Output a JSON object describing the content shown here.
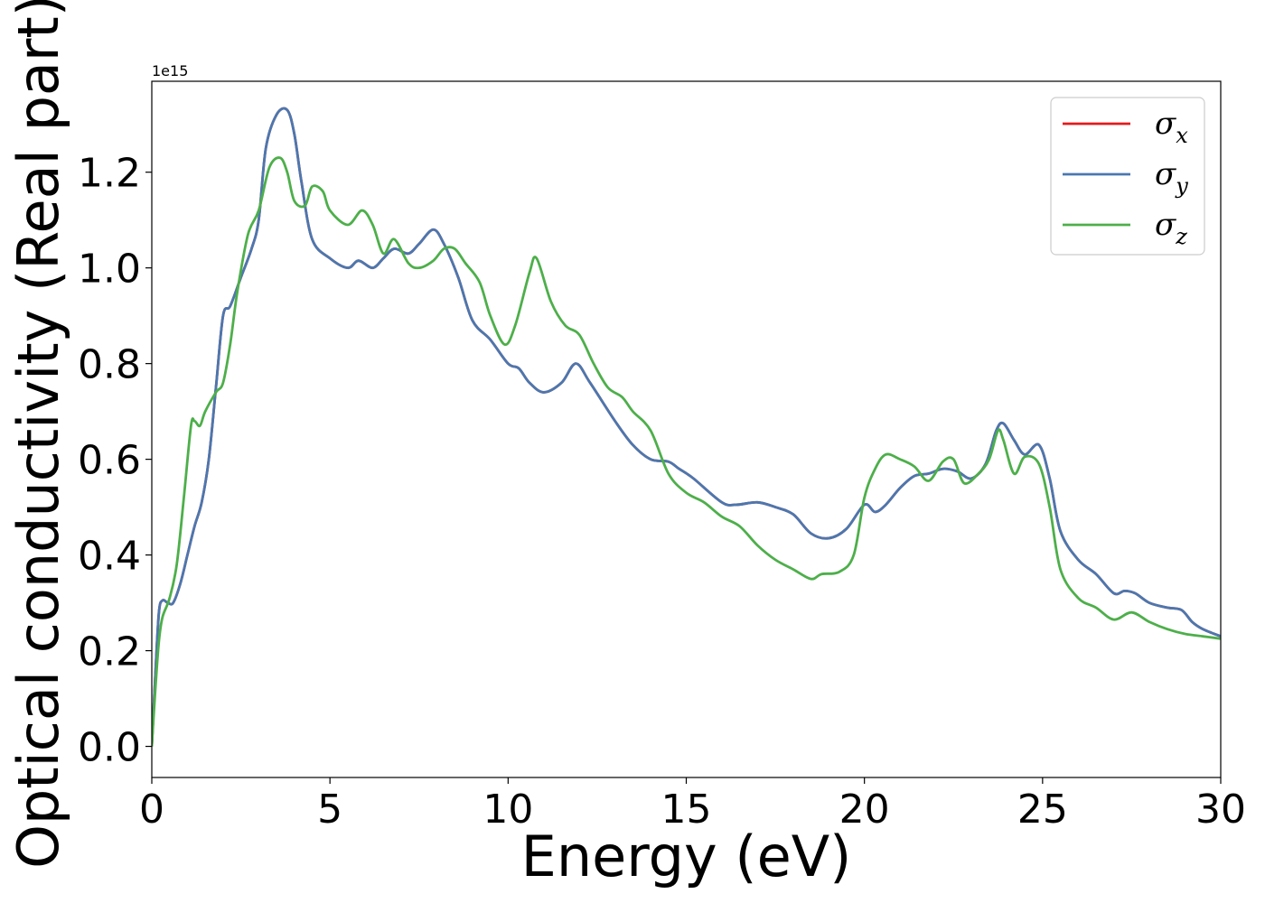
{
  "chart_data": {
    "type": "line",
    "xlabel": "Energy (eV)",
    "ylabel": "Optical conductivity (Real part)",
    "y_offset_label": "1e15",
    "xlim": [
      0,
      30
    ],
    "ylim": [
      -0.065,
      1.39
    ],
    "xticks": [
      0,
      5,
      10,
      15,
      20,
      25,
      30
    ],
    "xtick_labels": [
      "0",
      "5",
      "10",
      "15",
      "20",
      "25",
      "30"
    ],
    "yticks": [
      0.0,
      0.2,
      0.4,
      0.6,
      0.8,
      1.0,
      1.2
    ],
    "ytick_labels": [
      "0.0",
      "0.2",
      "0.4",
      "0.6",
      "0.8",
      "1.0",
      "1.2"
    ],
    "grid": false,
    "legend_position": "top-right",
    "legend": [
      {
        "symbol": "σ",
        "subscript": "x",
        "color": "#e41a1c"
      },
      {
        "symbol": "σ",
        "subscript": "y",
        "color": "#4a78b0"
      },
      {
        "symbol": "σ",
        "subscript": "z",
        "color": "#4daf4a"
      }
    ],
    "series": [
      {
        "color": "#e41a1c",
        "x": [
          0,
          0.1,
          0.2,
          0.3,
          0.45,
          0.6,
          0.8,
          1.0,
          1.2,
          1.4,
          1.6,
          1.8,
          2.0,
          2.2,
          2.5,
          2.8,
          3.0,
          3.2,
          3.5,
          3.8,
          4.0,
          4.2,
          4.5,
          5.0,
          5.5,
          5.8,
          6.2,
          6.5,
          6.8,
          7.2,
          7.5,
          7.9,
          8.2,
          8.6,
          9.0,
          9.5,
          10.0,
          10.3,
          10.6,
          11.0,
          11.5,
          11.9,
          12.3,
          13.0,
          13.5,
          14.0,
          14.5,
          14.8,
          15.2,
          16.0,
          16.4,
          17.0,
          17.5,
          18.0,
          18.5,
          19.0,
          19.5,
          20.0,
          20.3,
          20.6,
          21.0,
          21.4,
          21.8,
          22.2,
          22.6,
          23.0,
          23.4,
          23.7,
          23.9,
          24.2,
          24.5,
          24.9,
          25.2,
          25.5,
          26.0,
          26.5,
          27.0,
          27.3,
          27.6,
          28.0,
          28.5,
          28.9,
          29.2,
          29.5,
          30.0
        ],
        "values": [
          0.0,
          0.15,
          0.28,
          0.305,
          0.3,
          0.3,
          0.34,
          0.4,
          0.46,
          0.51,
          0.6,
          0.75,
          0.9,
          0.92,
          0.98,
          1.04,
          1.1,
          1.25,
          1.32,
          1.33,
          1.28,
          1.18,
          1.06,
          1.02,
          1.0,
          1.015,
          1.0,
          1.02,
          1.04,
          1.03,
          1.05,
          1.08,
          1.05,
          0.98,
          0.89,
          0.85,
          0.8,
          0.79,
          0.76,
          0.74,
          0.76,
          0.8,
          0.76,
          0.68,
          0.63,
          0.6,
          0.595,
          0.58,
          0.56,
          0.51,
          0.505,
          0.51,
          0.5,
          0.485,
          0.445,
          0.435,
          0.455,
          0.505,
          0.49,
          0.505,
          0.54,
          0.565,
          0.57,
          0.58,
          0.575,
          0.56,
          0.59,
          0.66,
          0.675,
          0.64,
          0.61,
          0.63,
          0.56,
          0.45,
          0.39,
          0.36,
          0.32,
          0.325,
          0.32,
          0.3,
          0.29,
          0.285,
          0.26,
          0.245,
          0.23
        ]
      },
      {
        "color": "#4a78b0",
        "x": [
          0,
          0.1,
          0.2,
          0.3,
          0.45,
          0.6,
          0.8,
          1.0,
          1.2,
          1.4,
          1.6,
          1.8,
          2.0,
          2.2,
          2.5,
          2.8,
          3.0,
          3.2,
          3.5,
          3.8,
          4.0,
          4.2,
          4.5,
          5.0,
          5.5,
          5.8,
          6.2,
          6.5,
          6.8,
          7.2,
          7.5,
          7.9,
          8.2,
          8.6,
          9.0,
          9.5,
          10.0,
          10.3,
          10.6,
          11.0,
          11.5,
          11.9,
          12.3,
          13.0,
          13.5,
          14.0,
          14.5,
          14.8,
          15.2,
          16.0,
          16.4,
          17.0,
          17.5,
          18.0,
          18.5,
          19.0,
          19.5,
          20.0,
          20.3,
          20.6,
          21.0,
          21.4,
          21.8,
          22.2,
          22.6,
          23.0,
          23.4,
          23.7,
          23.9,
          24.2,
          24.5,
          24.9,
          25.2,
          25.5,
          26.0,
          26.5,
          27.0,
          27.3,
          27.6,
          28.0,
          28.5,
          28.9,
          29.2,
          29.5,
          30.0
        ],
        "values": [
          0.0,
          0.15,
          0.28,
          0.305,
          0.3,
          0.3,
          0.34,
          0.4,
          0.46,
          0.51,
          0.6,
          0.75,
          0.9,
          0.92,
          0.98,
          1.04,
          1.1,
          1.25,
          1.32,
          1.33,
          1.28,
          1.18,
          1.06,
          1.02,
          1.0,
          1.015,
          1.0,
          1.02,
          1.04,
          1.03,
          1.05,
          1.08,
          1.05,
          0.98,
          0.89,
          0.85,
          0.8,
          0.79,
          0.76,
          0.74,
          0.76,
          0.8,
          0.76,
          0.68,
          0.63,
          0.6,
          0.595,
          0.58,
          0.56,
          0.51,
          0.505,
          0.51,
          0.5,
          0.485,
          0.445,
          0.435,
          0.455,
          0.505,
          0.49,
          0.505,
          0.54,
          0.565,
          0.57,
          0.58,
          0.575,
          0.56,
          0.59,
          0.66,
          0.675,
          0.64,
          0.61,
          0.63,
          0.56,
          0.45,
          0.39,
          0.36,
          0.32,
          0.325,
          0.32,
          0.3,
          0.29,
          0.285,
          0.26,
          0.245,
          0.23
        ]
      },
      {
        "color": "#4daf4a",
        "x": [
          0,
          0.1,
          0.2,
          0.3,
          0.5,
          0.7,
          0.9,
          1.1,
          1.2,
          1.35,
          1.5,
          1.8,
          2.0,
          2.2,
          2.4,
          2.7,
          3.0,
          3.3,
          3.6,
          3.8,
          4.0,
          4.3,
          4.5,
          4.8,
          5.0,
          5.5,
          5.9,
          6.2,
          6.5,
          6.8,
          7.2,
          7.5,
          7.9,
          8.2,
          8.5,
          8.8,
          9.2,
          9.5,
          9.9,
          10.2,
          10.6,
          10.8,
          11.2,
          11.6,
          12.0,
          12.4,
          12.8,
          13.2,
          13.5,
          14.0,
          14.5,
          15.0,
          15.5,
          16.0,
          16.5,
          17.0,
          17.5,
          18.0,
          18.5,
          18.8,
          19.3,
          19.7,
          20.0,
          20.3,
          20.6,
          21.0,
          21.4,
          21.8,
          22.2,
          22.5,
          22.8,
          23.2,
          23.5,
          23.75,
          23.9,
          24.2,
          24.5,
          24.9,
          25.2,
          25.5,
          26.0,
          26.5,
          27.0,
          27.5,
          28.0,
          28.5,
          29.0,
          29.5,
          30.0
        ],
        "values": [
          0.0,
          0.12,
          0.22,
          0.27,
          0.31,
          0.38,
          0.52,
          0.67,
          0.68,
          0.67,
          0.7,
          0.74,
          0.76,
          0.84,
          0.95,
          1.07,
          1.12,
          1.21,
          1.23,
          1.2,
          1.14,
          1.13,
          1.17,
          1.16,
          1.12,
          1.09,
          1.12,
          1.09,
          1.03,
          1.06,
          1.01,
          1.0,
          1.015,
          1.04,
          1.04,
          1.01,
          0.97,
          0.9,
          0.84,
          0.88,
          0.99,
          1.02,
          0.93,
          0.88,
          0.86,
          0.8,
          0.75,
          0.73,
          0.7,
          0.66,
          0.57,
          0.53,
          0.51,
          0.48,
          0.46,
          0.42,
          0.39,
          0.37,
          0.35,
          0.36,
          0.365,
          0.4,
          0.52,
          0.58,
          0.61,
          0.6,
          0.585,
          0.555,
          0.595,
          0.6,
          0.55,
          0.57,
          0.6,
          0.66,
          0.64,
          0.57,
          0.605,
          0.59,
          0.5,
          0.37,
          0.31,
          0.29,
          0.265,
          0.28,
          0.26,
          0.245,
          0.235,
          0.23,
          0.225
        ]
      }
    ]
  }
}
